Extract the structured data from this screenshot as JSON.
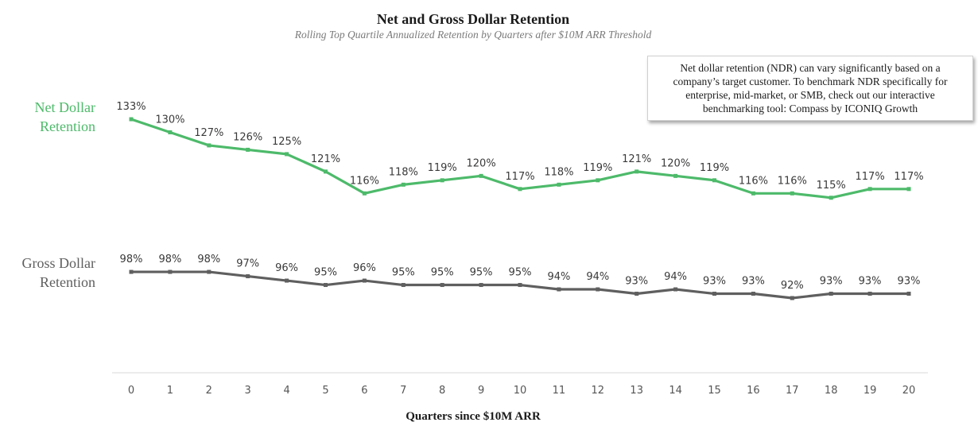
{
  "chart_data": {
    "type": "line",
    "title": "Net and Gross Dollar Retention",
    "subtitle": "Rolling Top Quartile Annualized Retention by Quarters after $10M ARR Threshold",
    "xlabel": "Quarters since $10M ARR",
    "ylabel": "",
    "x": [
      0,
      1,
      2,
      3,
      4,
      5,
      6,
      7,
      8,
      9,
      10,
      11,
      12,
      13,
      14,
      15,
      16,
      17,
      18,
      19,
      20
    ],
    "ylim": [
      55,
      140
    ],
    "grid": false,
    "legend": "left-side series labels",
    "series": [
      {
        "name": "Net Dollar Retention",
        "label_lines": [
          "Net Dollar",
          "Retention"
        ],
        "color": "#4dba6a",
        "values": [
          133,
          130,
          127,
          126,
          125,
          121,
          116,
          118,
          119,
          120,
          117,
          118,
          119,
          121,
          120,
          119,
          116,
          116,
          115,
          117,
          117
        ],
        "unit": "%"
      },
      {
        "name": "Gross Dollar Retention",
        "label_lines": [
          "Gross Dollar",
          "Retention"
        ],
        "color": "#5f5f5f",
        "values": [
          98,
          98,
          98,
          97,
          96,
          95,
          96,
          95,
          95,
          95,
          95,
          94,
          94,
          93,
          94,
          93,
          93,
          92,
          93,
          93,
          93
        ],
        "unit": "%"
      }
    ]
  },
  "note": {
    "text": "Net dollar retention (NDR) can vary significantly based on a company’s target customer. To benchmark NDR specifically for enterprise, mid-market, or SMB, check out our interactive benchmarking tool: Compass by ICONIQ Growth"
  }
}
